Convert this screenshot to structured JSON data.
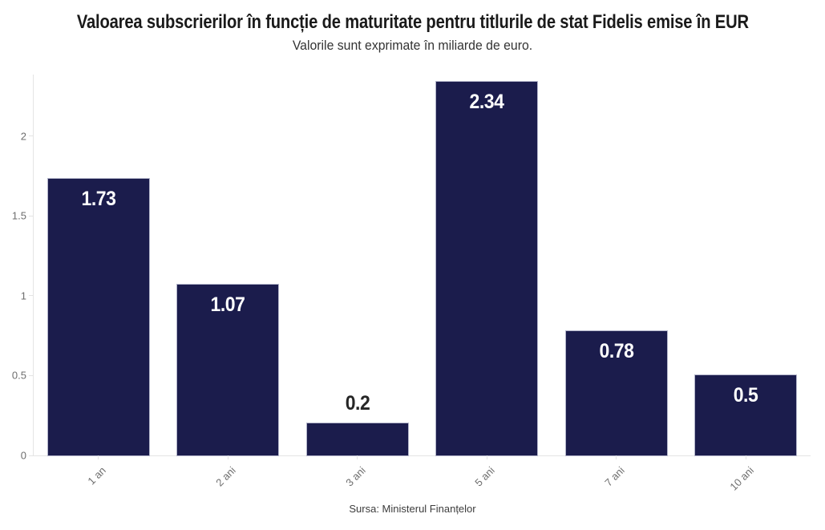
{
  "chart_data": {
    "type": "bar",
    "title": "Valoarea subscrierilor în funcție de maturitate pentru titlurile de stat Fidelis emise în EUR",
    "subtitle": "Valorile sunt exprimate în miliarde de euro.",
    "source": "Sursa: Ministerul Finanțelor",
    "categories": [
      "1 an",
      "2 ani",
      "3 ani",
      "5 ani",
      "7 ani",
      "10 ani"
    ],
    "values": [
      1.73,
      1.07,
      0.2,
      2.34,
      0.78,
      0.5
    ],
    "value_labels": [
      "1.73",
      "1.07",
      "0.2",
      "2.34",
      "0.78",
      "0.5"
    ],
    "xlabel": "",
    "ylabel": "",
    "yticks": [
      0,
      0.5,
      1,
      1.5,
      2
    ],
    "ytick_labels": [
      "0",
      "0.5",
      "1",
      "1.5",
      "2"
    ],
    "ylim": [
      0,
      2.385
    ],
    "grid": false,
    "legend": "none",
    "x_label_rotation_deg": -45,
    "colors": {
      "bar_fill": "#1b1c4c",
      "bar_border": "#b3b5ca",
      "axis_line": "#e4e4e4",
      "tick_text": "#6e6e6e",
      "title_text": "#1a1a1a",
      "subtitle_text": "#333333",
      "value_inside": "#ffffff",
      "value_outside": "#262626",
      "source_text": "#3c3c3c"
    }
  }
}
